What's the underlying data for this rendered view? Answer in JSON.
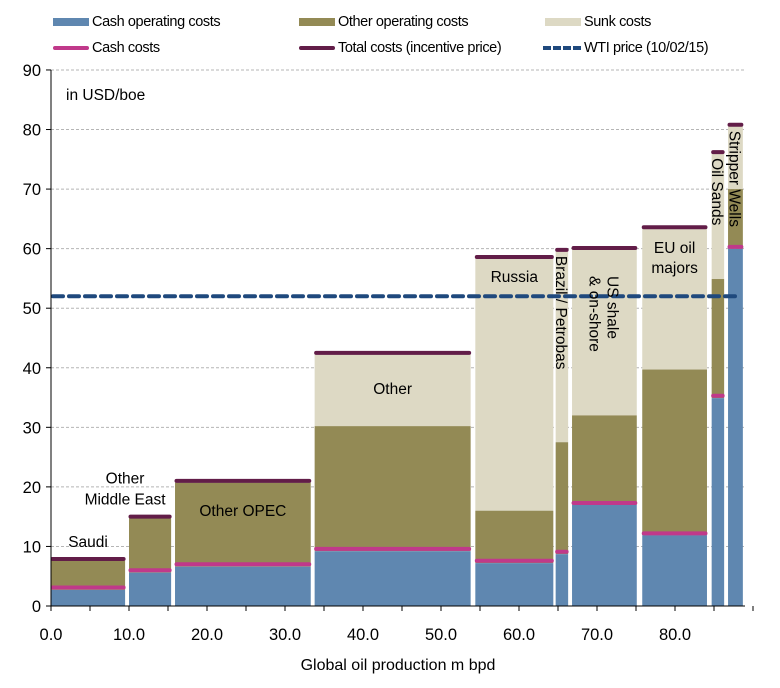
{
  "chart_data": {
    "type": "bar",
    "subtype": "variable-width stacked bar (cost curve)",
    "title": "",
    "unit_label": "in USD/boe",
    "xlabel": "Global oil production m bpd",
    "ylabel": "",
    "xlim": [
      0,
      90
    ],
    "ylim": [
      0,
      90
    ],
    "x_ticks": [
      0,
      10,
      20,
      30,
      40,
      50,
      60,
      70,
      80
    ],
    "x_tick_labels": [
      "0.0",
      "10.0",
      "20.0",
      "30.0",
      "40.0",
      "50.0",
      "60.0",
      "70.0",
      "80.0"
    ],
    "x_minor_tick_step": 5,
    "y_ticks": [
      0,
      10,
      20,
      30,
      40,
      50,
      60,
      70,
      80,
      90
    ],
    "y_tick_labels": [
      "0",
      "10",
      "20",
      "30",
      "40",
      "50",
      "60",
      "70",
      "80",
      "90"
    ],
    "grid": "horizontal dashed",
    "legend": {
      "placement": "top",
      "items": [
        {
          "label": "Cash operating costs",
          "kind": "box",
          "color": "#5f87b0"
        },
        {
          "label": "Other operating costs",
          "kind": "box",
          "color": "#938a55"
        },
        {
          "label": "Sunk costs",
          "kind": "box",
          "color": "#ddd9c4"
        },
        {
          "label": "Cash costs",
          "kind": "line",
          "color": "#c0398a"
        },
        {
          "label": "Total costs (incentive price)",
          "kind": "line",
          "color": "#621d48"
        },
        {
          "label": "WTI price (10/02/15)",
          "kind": "dash",
          "color": "#1f497d"
        }
      ]
    },
    "colors": {
      "cash_operating": "#5f87b0",
      "other_operating": "#938a55",
      "sunk": "#ddd9c4",
      "cash_costs": "#c0398a",
      "total_costs": "#621d48",
      "wti": "#1f497d"
    },
    "wti_price": 52.0,
    "segments": [
      {
        "label": "Saudi",
        "x_start": 0.0,
        "x_end": 9.5,
        "cash_operating": 2.7,
        "cash_costs": 3.1,
        "other_operating_top": 7.6,
        "total_costs": 7.9,
        "label_pos": "above",
        "label_lines": [
          "Saudi"
        ]
      },
      {
        "label": "Other Middle East",
        "x_start": 10.0,
        "x_end": 15.4,
        "cash_operating": 5.6,
        "cash_costs": 6.0,
        "other_operating_top": 14.7,
        "total_costs": 15.0,
        "label_pos": "above",
        "label_lines": [
          "Other",
          "Middle East"
        ]
      },
      {
        "label": "Other OPEC",
        "x_start": 15.9,
        "x_end": 33.3,
        "cash_operating": 6.6,
        "cash_costs": 7.0,
        "other_operating_top": 20.7,
        "total_costs": 21.0,
        "label_pos": "inside",
        "label_lines": [
          "Other OPEC"
        ]
      },
      {
        "label": "Other",
        "x_start": 33.8,
        "x_end": 53.8,
        "cash_operating": 9.2,
        "cash_costs": 9.6,
        "other_operating_top": 30.2,
        "total_costs": 42.5,
        "label_pos": "inside",
        "label_lines": [
          "Other"
        ]
      },
      {
        "label": "Russia",
        "x_start": 54.4,
        "x_end": 64.4,
        "cash_operating": 7.2,
        "cash_costs": 7.6,
        "other_operating_top": 16.0,
        "total_costs": 58.6,
        "label_pos": "inside",
        "label_lines": [
          "Russia"
        ]
      },
      {
        "label": "Brazil / Petrobas",
        "x_start": 64.7,
        "x_end": 66.3,
        "cash_operating": 8.7,
        "cash_costs": 9.1,
        "other_operating_top": 27.5,
        "total_costs": 59.8,
        "label_pos": "vertical",
        "label_lines": [
          "Brazil / Petrobas"
        ]
      },
      {
        "label": "US shale & on-shore",
        "x_start": 66.8,
        "x_end": 75.1,
        "cash_operating": 17.0,
        "cash_costs": 17.3,
        "other_operating_top": 32.0,
        "total_costs": 60.1,
        "label_pos": "vertical",
        "label_lines": [
          "US shale",
          "& on-shore"
        ]
      },
      {
        "label": "EU oil majors",
        "x_start": 75.8,
        "x_end": 84.1,
        "cash_operating": 11.9,
        "cash_costs": 12.2,
        "other_operating_top": 39.7,
        "total_costs": 63.6,
        "label_pos": "inside",
        "label_lines": [
          "EU oil",
          "majors"
        ]
      },
      {
        "label": "Oil Sands",
        "x_start": 84.7,
        "x_end": 86.3,
        "cash_operating": 34.9,
        "cash_costs": 35.3,
        "other_operating_top": 54.9,
        "total_costs": 76.2,
        "label_pos": "vertical",
        "label_lines": [
          "Oil Sands"
        ]
      },
      {
        "label": "Stripper Wells",
        "x_start": 86.8,
        "x_end": 88.7,
        "cash_operating": 60.0,
        "cash_costs": 60.3,
        "other_operating_top": 70.0,
        "total_costs": 80.8,
        "label_pos": "vertical",
        "label_lines": [
          "Stripper Wells"
        ]
      }
    ]
  }
}
